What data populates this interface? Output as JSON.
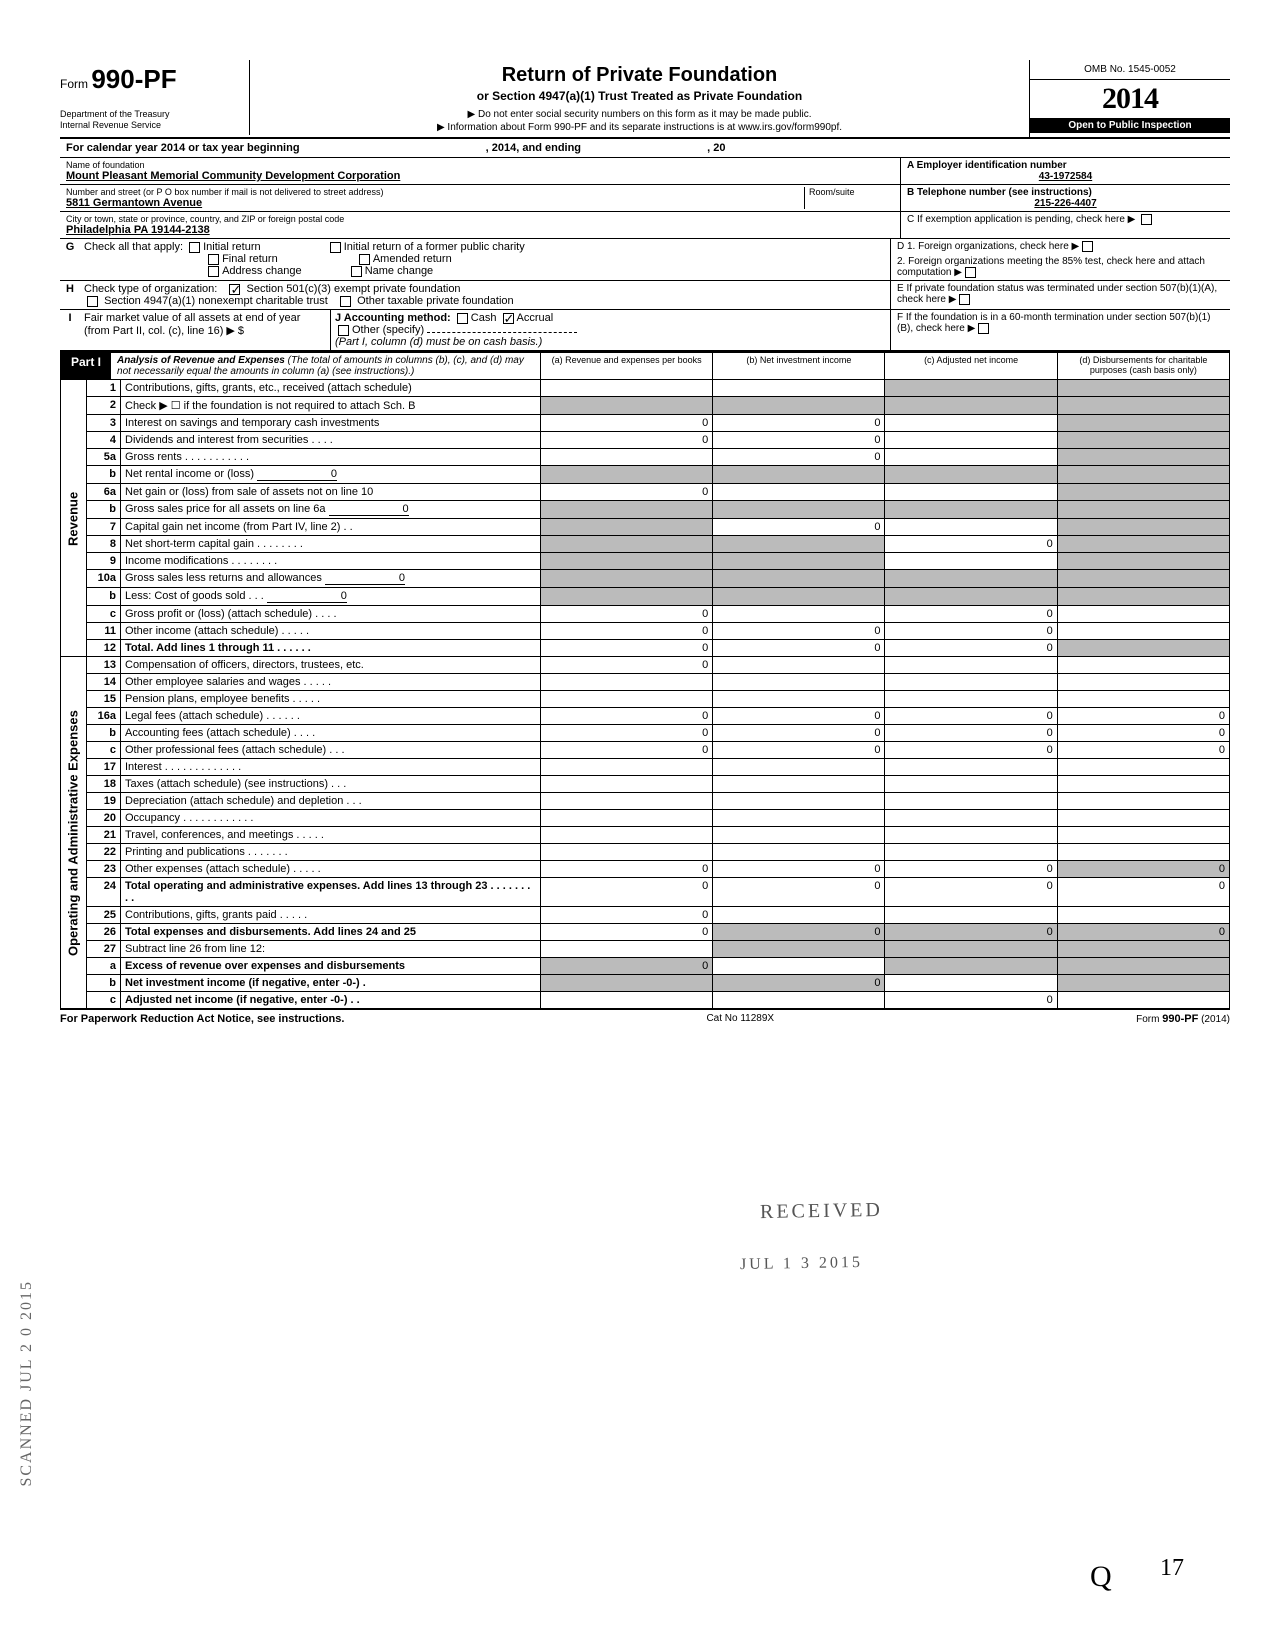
{
  "header": {
    "form": "990-PF",
    "form_prefix": "Form",
    "dept1": "Department of the Treasury",
    "dept2": "Internal Revenue Service",
    "title": "Return of Private Foundation",
    "subtitle": "or Section 4947(a)(1) Trust Treated as Private Foundation",
    "instr1": "▶ Do not enter social security numbers on this form as it may be made public.",
    "instr2": "▶ Information about Form 990-PF and its separate instructions is at www.irs.gov/form990pf.",
    "omb": "OMB No. 1545-0052",
    "year_prefix": "20",
    "year_suffix": "14",
    "public": "Open to Public Inspection"
  },
  "cal": {
    "left": "For calendar year 2014 or tax year beginning",
    "mid": ", 2014, and ending",
    "right": ", 20"
  },
  "id": {
    "name_label": "Name of foundation",
    "name": "Mount Pleasant Memorial Community Development Corporation",
    "addr_label": "Number and street (or P O  box number if mail is not delivered to street address)",
    "addr": "5811 Germantown Avenue",
    "room_label": "Room/suite",
    "city_label": "City or town, state or province, country, and ZIP or foreign postal code",
    "city": "Philadelphia  PA  19144-2138",
    "a_label": "A  Employer identification number",
    "a_val": "43-1972584",
    "b_label": "B  Telephone number (see instructions)",
    "b_val": "215-226-4407",
    "c_label": "C  If exemption application is pending, check here ▶"
  },
  "g": {
    "label": "Check all that apply:",
    "o1": "Initial return",
    "o2": "Initial return of a former public charity",
    "o3": "Final return",
    "o4": "Amended return",
    "o5": "Address change",
    "o6": "Name change"
  },
  "d": {
    "d1": "D  1. Foreign organizations, check here",
    "d2": "2. Foreign organizations meeting the 85% test, check here and attach computation"
  },
  "h": {
    "label": "Check type of organization:",
    "o1": "Section 501(c)(3) exempt private foundation",
    "l2": "Section 4947(a)(1) nonexempt charitable trust",
    "o3": "Other taxable private foundation"
  },
  "e": "E  If private foundation status was terminated under section 507(b)(1)(A), check here",
  "i": {
    "l1": "Fair market value of all assets at end of year  (from Part II, col. (c), line 16) ▶ $",
    "j": "J   Accounting method:",
    "j1": "Cash",
    "j2": "Accrual",
    "j3": "Other (specify)",
    "note": "(Part I, column (d) must be on cash basis.)"
  },
  "f": "F  If the foundation is in a 60-month termination under section 507(b)(1)(B), check here",
  "part1": {
    "tab": "Part I",
    "title": "Analysis of Revenue and Expenses",
    "note": "(The total of amounts in columns (b), (c), and (d) may not necessarily equal the amounts in column (a) (see instructions).)",
    "cols": {
      "a": "(a) Revenue and expenses per books",
      "b": "(b) Net investment income",
      "c": "(c) Adjusted net income",
      "d": "(d) Disbursements for charitable purposes (cash basis only)"
    }
  },
  "side": {
    "rev": "Revenue",
    "exp": "Operating and Administrative Expenses"
  },
  "rows": [
    {
      "n": "1",
      "d": "Contributions, gifts, grants, etc., received (attach schedule)"
    },
    {
      "n": "2",
      "d": "Check ▶ ☐  if the foundation is not required to attach Sch. B"
    },
    {
      "n": "3",
      "d": "Interest on savings and temporary cash investments",
      "a": "0",
      "b": "0"
    },
    {
      "n": "4",
      "d": "Dividends and interest from securities    .    .    .    .",
      "a": "0",
      "b": "0"
    },
    {
      "n": "5a",
      "d": "Gross rents  .    .    .    .    .    .    .    .    .    .    .",
      "b": "0"
    },
    {
      "n": "b",
      "d": "Net rental income or (loss)",
      "u": "0"
    },
    {
      "n": "6a",
      "d": "Net gain or (loss) from sale of assets not on line 10",
      "a": "0"
    },
    {
      "n": "b",
      "d": "Gross sales price for all assets on line 6a",
      "u": "0"
    },
    {
      "n": "7",
      "d": "Capital gain net income (from Part IV, line 2)  .   .",
      "b": "0"
    },
    {
      "n": "8",
      "d": "Net short-term capital gain .   .   .   .   .   .   .   .",
      "c": "0"
    },
    {
      "n": "9",
      "d": "Income modifications     .    .    .    .    .    .    .    ."
    },
    {
      "n": "10a",
      "d": "Gross sales less returns and allowances",
      "u": "0"
    },
    {
      "n": "b",
      "d": "Less: Cost of goods sold      .    .    .",
      "u": "0"
    },
    {
      "n": "c",
      "d": "Gross profit or (loss) (attach schedule)   .    .    .    .",
      "a": "0",
      "c": "0"
    },
    {
      "n": "11",
      "d": "Other income (attach schedule)    .    .    .    .    .",
      "a": "0",
      "b": "0",
      "c": "0"
    },
    {
      "n": "12",
      "d": "Total. Add lines 1 through 11   .    .    .    .    .    .",
      "bold": true,
      "a": "0",
      "b": "0",
      "c": "0"
    },
    {
      "n": "13",
      "d": "Compensation of officers, directors, trustees, etc.",
      "a": "0"
    },
    {
      "n": "14",
      "d": "Other employee salaries and wages .    .    .    .    ."
    },
    {
      "n": "15",
      "d": "Pension plans, employee benefits    .    .    .    .    ."
    },
    {
      "n": "16a",
      "d": "Legal fees (attach schedule)     .    .    .    .    .    .",
      "a": "0",
      "b": "0",
      "c": "0",
      "dd": "0"
    },
    {
      "n": "b",
      "d": "Accounting fees (attach schedule)      .    .    .    .",
      "a": "0",
      "b": "0",
      "c": "0",
      "dd": "0"
    },
    {
      "n": "c",
      "d": "Other professional fees (attach schedule)   .   .   .",
      "a": "0",
      "b": "0",
      "c": "0",
      "dd": "0"
    },
    {
      "n": "17",
      "d": "Interest   .    .    .    .    .    .    .    .    .    .    .    .    ."
    },
    {
      "n": "18",
      "d": "Taxes (attach schedule) (see instructions)    .    .    ."
    },
    {
      "n": "19",
      "d": "Depreciation (attach schedule) and depletion  .   .   ."
    },
    {
      "n": "20",
      "d": "Occupancy .    .    .    .    .    .    .    .    .    .    .    ."
    },
    {
      "n": "21",
      "d": "Travel, conferences, and meetings    .    .    .    .    ."
    },
    {
      "n": "22",
      "d": "Printing and publications      .    .    .    .    .    .    ."
    },
    {
      "n": "23",
      "d": "Other expenses (attach schedule)     .    .    .    .    .",
      "a": "0",
      "b": "0",
      "c": "0",
      "dd": "0"
    },
    {
      "n": "24",
      "d": "Total operating and administrative expenses. Add lines 13 through 23 .    .    .    .    .    .    .    .    .",
      "bold": true,
      "a": "0",
      "b": "0",
      "c": "0",
      "dd": "0"
    },
    {
      "n": "25",
      "d": "Contributions, gifts, grants paid     .    .    .    .    .",
      "a": "0"
    },
    {
      "n": "26",
      "d": "Total expenses and disbursements. Add lines 24 and 25",
      "bold": true,
      "a": "0",
      "b": "0",
      "c": "0",
      "dd": "0"
    },
    {
      "n": "27",
      "d": "Subtract line 26 from line 12:"
    },
    {
      "n": "a",
      "d": "Excess of revenue over expenses and disbursements",
      "bold": true,
      "a": "0"
    },
    {
      "n": "b",
      "d": "Net investment income (if negative, enter -0-)   .",
      "bold": true,
      "b": "0"
    },
    {
      "n": "c",
      "d": "Adjusted net income (if negative, enter -0-)   .   .",
      "bold": true,
      "c": "0"
    }
  ],
  "stamps": {
    "received": "RECEIVED",
    "date": "JUL  1 3  2015",
    "margin": "SCANNED  JUL 2 0 2015"
  },
  "footer": {
    "left": "For Paperwork Reduction Act Notice, see instructions.",
    "mid": "Cat  No  11289X",
    "right": "Form 990-PF (2014)"
  },
  "marks": {
    "initial": "Q",
    "page": "17"
  }
}
